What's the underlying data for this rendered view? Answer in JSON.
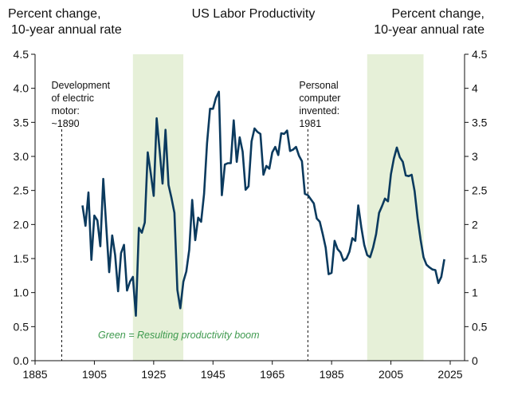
{
  "chart_data": {
    "type": "line",
    "title": "US Labor Productivity",
    "ylabel_left": [
      "Percent change,",
      "10-year annual rate"
    ],
    "ylabel_right": [
      "Percent change,",
      "10-year annual rate"
    ],
    "xlim": [
      1885,
      2025
    ],
    "ylim": [
      0,
      4.5
    ],
    "x_ticks": [
      "1885",
      "1905",
      "1925",
      "1945",
      "1965",
      "1985",
      "2005",
      "2025"
    ],
    "y_ticks_left": [
      "0.0",
      "0.5",
      "1.0",
      "1.5",
      "2.0",
      "2.5",
      "3.0",
      "3.5",
      "4.0",
      "4.5"
    ],
    "y_ticks_right": [
      "0",
      "0.5",
      "1",
      "1.5",
      "2",
      "2.5",
      "3",
      "3.5",
      "4",
      "4.5"
    ],
    "grid": false,
    "series": [
      {
        "name": "US Labor Productivity",
        "color": "#0b3a5e",
        "start_year": 1901,
        "values": [
          2.28,
          1.98,
          2.47,
          1.48,
          2.13,
          2.06,
          1.68,
          2.67,
          1.98,
          1.3,
          1.84,
          1.55,
          1.02,
          1.58,
          1.7,
          1.03,
          1.16,
          1.23,
          0.66,
          1.95,
          1.88,
          2.03,
          3.06,
          2.76,
          2.42,
          3.56,
          3.09,
          2.6,
          3.39,
          2.58,
          2.39,
          2.17,
          1.04,
          0.77,
          1.16,
          1.31,
          1.63,
          2.36,
          1.77,
          2.1,
          2.04,
          2.45,
          3.19,
          3.7,
          3.7,
          3.86,
          3.95,
          2.43,
          2.88,
          2.9,
          2.9,
          3.53,
          2.92,
          3.28,
          3.07,
          2.51,
          2.56,
          3.22,
          3.41,
          3.36,
          3.33,
          2.73,
          2.86,
          2.82,
          3.06,
          3.14,
          3.02,
          3.34,
          3.33,
          3.38,
          3.08,
          3.1,
          3.14,
          3.01,
          2.93,
          2.45,
          2.43,
          2.37,
          2.31,
          2.09,
          2.04,
          1.86,
          1.66,
          1.27,
          1.29,
          1.76,
          1.64,
          1.59,
          1.47,
          1.5,
          1.6,
          1.8,
          1.76,
          2.28,
          1.96,
          1.7,
          1.55,
          1.52,
          1.66,
          1.86,
          2.17,
          2.27,
          2.38,
          2.34,
          2.74,
          2.97,
          3.13,
          2.99,
          2.92,
          2.72,
          2.71,
          2.73,
          2.49,
          2.09,
          1.78,
          1.52,
          1.41,
          1.37,
          1.34,
          1.33,
          1.14,
          1.23,
          1.49
        ]
      }
    ],
    "shaded_periods": [
      {
        "from": 1918,
        "to": 1935,
        "color": "#e6f0d8"
      },
      {
        "from": 1997,
        "to": 2016,
        "color": "#e6f0d8"
      }
    ],
    "annotations": [
      {
        "year": 1894,
        "lines": [
          "Development",
          "of electric",
          "motor:",
          "~1890"
        ]
      },
      {
        "year": 1977,
        "lines": [
          "Personal",
          "computer",
          "invented:",
          "1981"
        ]
      }
    ],
    "note": "Green = Resulting productivity boom",
    "note_color": "#3f9a4f"
  }
}
